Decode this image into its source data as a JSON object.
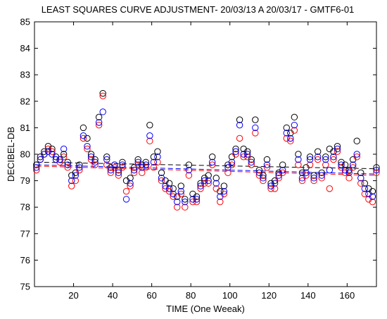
{
  "chart_data": {
    "type": "scatter",
    "title": "LEAST SQUARES CURVE ADJUSTMENT- 20/03/13 A 20/03/17 - GMTF6-01",
    "xlabel": "TIME (One Weeak)",
    "ylabel": "DECIBEL-DB",
    "xlim": [
      0,
      175
    ],
    "ylim": [
      75,
      85
    ],
    "x_ticks": [
      20,
      40,
      60,
      80,
      100,
      120,
      140,
      160
    ],
    "y_ticks": [
      75,
      76,
      77,
      78,
      79,
      80,
      81,
      82,
      83,
      84,
      85
    ],
    "grid": false,
    "legend": "none",
    "colors": {
      "black": "#000000",
      "red": "#ff0000",
      "blue": "#0000ff"
    },
    "x": [
      1,
      3,
      5,
      7,
      9,
      11,
      13,
      15,
      17,
      19,
      21,
      23,
      25,
      27,
      29,
      31,
      33,
      35,
      37,
      39,
      41,
      43,
      45,
      47,
      49,
      51,
      53,
      55,
      57,
      59,
      61,
      63,
      65,
      67,
      69,
      71,
      73,
      75,
      77,
      79,
      81,
      83,
      85,
      87,
      89,
      91,
      93,
      95,
      97,
      99,
      101,
      103,
      105,
      107,
      109,
      111,
      113,
      115,
      117,
      119,
      121,
      123,
      125,
      127,
      129,
      131,
      133,
      135,
      137,
      139,
      141,
      143,
      145,
      147,
      149,
      151,
      153,
      155,
      157,
      159,
      161,
      163,
      165,
      167,
      169,
      171,
      173,
      175
    ],
    "series": [
      {
        "color": "black",
        "values": [
          79.6,
          79.9,
          80.1,
          80.3,
          80.2,
          79.9,
          79.8,
          80.0,
          79.7,
          79.2,
          79.3,
          79.6,
          81.0,
          80.6,
          80.0,
          79.8,
          81.4,
          82.3,
          79.9,
          79.5,
          79.6,
          79.4,
          79.7,
          79.0,
          79.1,
          79.5,
          79.8,
          79.6,
          79.7,
          81.1,
          79.9,
          80.1,
          79.3,
          79.0,
          78.9,
          78.7,
          78.4,
          78.8,
          78.3,
          79.6,
          78.5,
          78.4,
          78.9,
          79.1,
          79.2,
          79.9,
          79.1,
          78.6,
          78.8,
          79.6,
          79.9,
          80.2,
          81.3,
          80.2,
          80.1,
          79.8,
          81.3,
          79.4,
          79.2,
          79.8,
          78.9,
          79.0,
          79.3,
          79.6,
          81.0,
          80.8,
          81.4,
          80.0,
          79.3,
          79.5,
          79.9,
          79.2,
          80.1,
          79.3,
          79.9,
          80.2,
          80.1,
          80.3,
          79.7,
          79.6,
          79.4,
          79.8,
          80.5,
          79.3,
          78.9,
          78.7,
          78.6,
          79.5
        ]
      },
      {
        "color": "red",
        "values": [
          79.4,
          79.8,
          80.0,
          80.2,
          80.1,
          79.8,
          79.7,
          79.9,
          79.5,
          78.8,
          79.0,
          79.4,
          80.6,
          80.2,
          79.8,
          79.6,
          81.1,
          82.2,
          79.6,
          79.3,
          79.5,
          79.2,
          79.5,
          78.6,
          78.8,
          79.3,
          79.6,
          79.3,
          79.5,
          80.5,
          79.5,
          79.7,
          79.0,
          78.7,
          78.6,
          78.4,
          78.0,
          78.5,
          78.0,
          79.2,
          78.2,
          78.2,
          78.7,
          78.9,
          78.9,
          79.6,
          78.7,
          78.2,
          78.5,
          79.3,
          79.6,
          80.0,
          80.6,
          79.9,
          79.9,
          79.6,
          80.8,
          79.2,
          79.0,
          79.5,
          78.7,
          78.7,
          79.1,
          79.3,
          80.6,
          80.5,
          80.9,
          79.6,
          79.0,
          79.2,
          79.6,
          79.0,
          79.8,
          79.1,
          79.6,
          78.7,
          79.8,
          80.1,
          79.5,
          79.3,
          79.1,
          79.5,
          79.9,
          78.9,
          78.5,
          78.3,
          78.2,
          79.3
        ]
      },
      {
        "color": "blue",
        "values": [
          79.5,
          79.8,
          80.0,
          80.1,
          80.0,
          79.8,
          79.8,
          80.2,
          79.6,
          79.0,
          79.2,
          79.5,
          80.7,
          80.3,
          79.9,
          79.7,
          81.2,
          81.6,
          79.8,
          79.4,
          79.6,
          79.3,
          79.6,
          78.3,
          78.9,
          79.4,
          79.7,
          79.5,
          79.6,
          80.7,
          79.7,
          79.9,
          79.1,
          78.8,
          78.7,
          78.5,
          78.2,
          78.6,
          78.2,
          79.4,
          78.3,
          78.3,
          78.8,
          79.0,
          79.0,
          79.7,
          78.9,
          78.4,
          78.6,
          79.5,
          79.7,
          80.1,
          81.1,
          80.0,
          80.0,
          79.7,
          81.0,
          79.3,
          79.1,
          79.6,
          78.8,
          78.9,
          79.2,
          79.4,
          80.8,
          80.6,
          81.1,
          79.8,
          79.1,
          79.3,
          79.8,
          79.1,
          79.9,
          79.2,
          79.8,
          79.4,
          79.9,
          80.2,
          79.6,
          79.4,
          79.3,
          79.6,
          80.0,
          79.1,
          78.7,
          78.5,
          78.4,
          79.4
        ]
      }
    ],
    "fit_lines": [
      {
        "color": "black",
        "style": "dashed",
        "x": [
          1,
          175
        ],
        "y": [
          79.7,
          79.45
        ]
      },
      {
        "color": "red",
        "style": "dashed",
        "x": [
          1,
          175
        ],
        "y": [
          79.55,
          79.2
        ]
      },
      {
        "color": "blue",
        "style": "dashed",
        "x": [
          1,
          175
        ],
        "y": [
          79.6,
          79.25
        ]
      }
    ]
  }
}
